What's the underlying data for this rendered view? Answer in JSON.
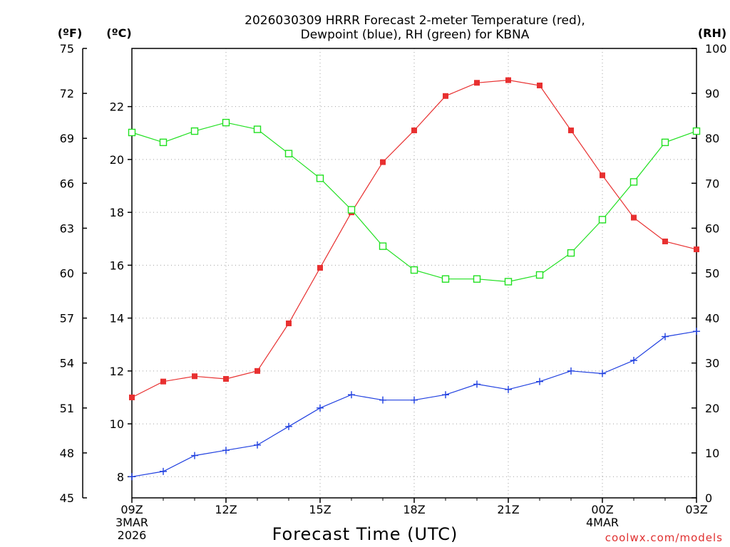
{
  "chart_data": {
    "type": "line",
    "title": "2026030309 HRRR Forecast 2-meter Temperature (red),",
    "subtitle": "Dewpoint (blue), RH (green) for KBNA",
    "xlabel": "Forecast Time (UTC)",
    "credit": "coolwx.com/models",
    "hours": [
      9,
      10,
      11,
      12,
      13,
      14,
      15,
      16,
      17,
      18,
      19,
      20,
      21,
      22,
      23,
      24,
      25,
      26,
      27
    ],
    "xlim": [
      9,
      27
    ],
    "x_ticks": [
      {
        "x": 9,
        "label": "09Z",
        "sub1": "3MAR",
        "sub2": "2026"
      },
      {
        "x": 12,
        "label": "12Z",
        "sub1": "",
        "sub2": ""
      },
      {
        "x": 15,
        "label": "15Z",
        "sub1": "",
        "sub2": ""
      },
      {
        "x": 18,
        "label": "18Z",
        "sub1": "",
        "sub2": ""
      },
      {
        "x": 21,
        "label": "21Z",
        "sub1": "",
        "sub2": ""
      },
      {
        "x": 24,
        "label": "00Z",
        "sub1": "4MAR",
        "sub2": ""
      },
      {
        "x": 27,
        "label": "03Z",
        "sub1": "",
        "sub2": ""
      }
    ],
    "axes": {
      "celsius": {
        "unit_label": "(ºC)",
        "ylim": [
          7.2,
          24.2
        ],
        "ticks": [
          8,
          10,
          12,
          14,
          16,
          18,
          20,
          22
        ]
      },
      "fahrenheit": {
        "unit_label": "(ºF)",
        "ylim": [
          45,
          75
        ],
        "ticks": [
          45,
          48,
          51,
          54,
          57,
          60,
          63,
          66,
          69,
          72,
          75
        ]
      },
      "rh": {
        "unit_label": "(RH)",
        "ylim": [
          0,
          100
        ],
        "ticks": [
          0,
          10,
          20,
          30,
          40,
          50,
          60,
          70,
          80,
          90,
          100
        ]
      }
    },
    "series": [
      {
        "name": "Temperature",
        "axis": "celsius",
        "color": "#e83030",
        "marker": "filled-square",
        "values": [
          11.0,
          11.6,
          11.8,
          11.7,
          12.0,
          13.8,
          15.9,
          18.0,
          19.9,
          21.1,
          22.4,
          22.9,
          23.0,
          22.8,
          21.1,
          19.4,
          17.8,
          16.9,
          16.6
        ]
      },
      {
        "name": "Dewpoint",
        "axis": "celsius",
        "color": "#2040e0",
        "marker": "plus",
        "values": [
          8.0,
          8.2,
          8.8,
          9.0,
          9.2,
          9.9,
          10.6,
          11.1,
          10.9,
          10.9,
          11.1,
          11.5,
          11.3,
          11.6,
          12.0,
          11.9,
          12.4,
          13.3,
          13.5
        ]
      },
      {
        "name": "RH",
        "axis": "rh",
        "color": "#20e020",
        "marker": "open-square",
        "values": [
          81.3,
          79.1,
          81.6,
          83.5,
          82.0,
          76.6,
          71.1,
          64.1,
          56.0,
          50.7,
          48.7,
          48.7,
          48.1,
          49.6,
          54.5,
          61.9,
          70.3,
          79.1,
          81.6
        ]
      }
    ]
  }
}
